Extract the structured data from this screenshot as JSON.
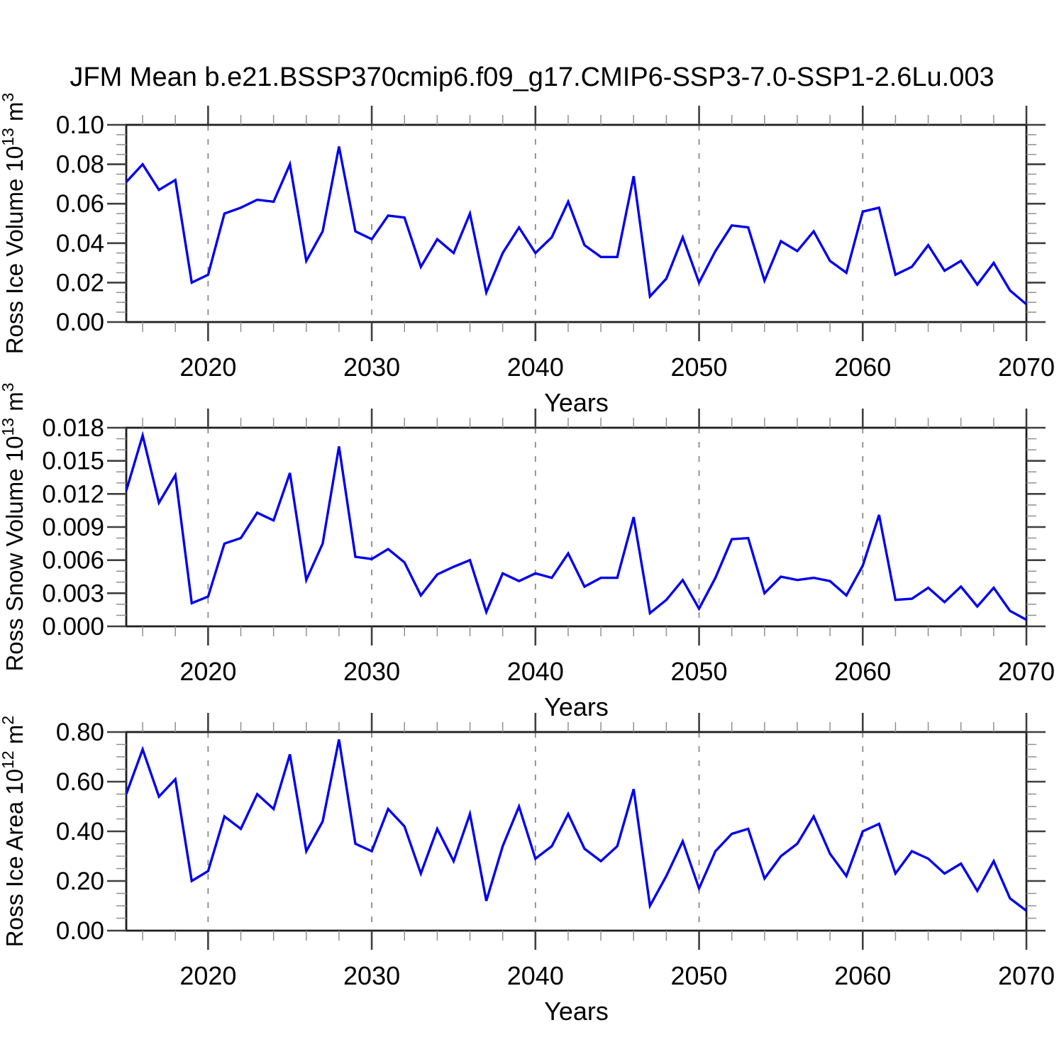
{
  "title": "JFM Mean b.e21.BSSP370cmip6.f09_g17.CMIP6-SSP3-7.0-SSP1-2.6Lu.003",
  "colors": {
    "series_line": "#0000EE",
    "gridline": "#8A8A8A",
    "axis": "#1F1F1F",
    "text": "#000000",
    "background": "#FFFFFF"
  },
  "x_axis": {
    "label": "Years",
    "range": [
      2015,
      2070
    ],
    "major_ticks": [
      2020,
      2030,
      2040,
      2050,
      2060,
      2070
    ],
    "tick_labels": [
      "2020",
      "2030",
      "2040",
      "2050",
      "2060",
      "2070"
    ],
    "minor_step": 2,
    "gridline_years": [
      2020,
      2030,
      2040,
      2050,
      2060
    ]
  },
  "years": [
    2015,
    2016,
    2017,
    2018,
    2019,
    2020,
    2021,
    2022,
    2023,
    2024,
    2025,
    2026,
    2027,
    2028,
    2029,
    2030,
    2031,
    2032,
    2033,
    2034,
    2035,
    2036,
    2037,
    2038,
    2039,
    2040,
    2041,
    2042,
    2043,
    2044,
    2045,
    2046,
    2047,
    2048,
    2049,
    2050,
    2051,
    2052,
    2053,
    2054,
    2055,
    2056,
    2057,
    2058,
    2059,
    2060,
    2061,
    2062,
    2063,
    2064,
    2065,
    2066,
    2067,
    2068,
    2069,
    2070
  ],
  "chart_data": [
    {
      "type": "line",
      "name": "ross-ice-volume",
      "xlabel": "Years",
      "ylabel_text": "Ross Ice Volume 10^13 m^3",
      "ylabel_parts": [
        {
          "text": "Ross Ice Volume 10"
        },
        {
          "text": "13",
          "sup": true
        },
        {
          "text": " m"
        },
        {
          "text": "3",
          "sup": true
        }
      ],
      "ylim": [
        0.0,
        0.1
      ],
      "ytick_values": [
        0.0,
        0.02,
        0.04,
        0.06,
        0.08,
        0.1
      ],
      "ytick_labels": [
        "0.00",
        "0.02",
        "0.04",
        "0.06",
        "0.08",
        "0.10"
      ],
      "y_minor_step": 0.005,
      "line_color": "#0000EE",
      "grid": "dashed vertical gridlines at decades",
      "legend": "none",
      "values": [
        0.071,
        0.08,
        0.067,
        0.072,
        0.02,
        0.024,
        0.055,
        0.058,
        0.062,
        0.061,
        0.08,
        0.031,
        0.046,
        0.089,
        0.046,
        0.042,
        0.054,
        0.053,
        0.028,
        0.042,
        0.035,
        0.055,
        0.015,
        0.035,
        0.048,
        0.035,
        0.043,
        0.061,
        0.039,
        0.033,
        0.033,
        0.074,
        0.013,
        0.022,
        0.043,
        0.02,
        0.036,
        0.049,
        0.048,
        0.021,
        0.041,
        0.036,
        0.046,
        0.031,
        0.025,
        0.056,
        0.058,
        0.024,
        0.028,
        0.039,
        0.026,
        0.031,
        0.019,
        0.03,
        0.016,
        0.009
      ]
    },
    {
      "type": "line",
      "name": "ross-snow-volume",
      "xlabel": "Years",
      "ylabel_text": "Ross Snow Volume 10^13 m^3",
      "ylabel_parts": [
        {
          "text": "Ross Snow Volume 10"
        },
        {
          "text": "13",
          "sup": true
        },
        {
          "text": " m"
        },
        {
          "text": "3",
          "sup": true
        }
      ],
      "ylim": [
        0.0,
        0.018
      ],
      "ytick_values": [
        0.0,
        0.003,
        0.006,
        0.009,
        0.012,
        0.015,
        0.018
      ],
      "ytick_labels": [
        "0.000",
        "0.003",
        "0.006",
        "0.009",
        "0.012",
        "0.015",
        "0.018"
      ],
      "y_minor_step": 0.001,
      "line_color": "#0000EE",
      "grid": "dashed vertical gridlines at decades",
      "legend": "none",
      "values": [
        0.0123,
        0.0173,
        0.0112,
        0.0137,
        0.0021,
        0.0027,
        0.0075,
        0.008,
        0.0103,
        0.0096,
        0.0139,
        0.0042,
        0.0075,
        0.0163,
        0.0063,
        0.0061,
        0.007,
        0.0058,
        0.0028,
        0.0047,
        0.0054,
        0.006,
        0.0013,
        0.0048,
        0.0041,
        0.0048,
        0.0044,
        0.0066,
        0.0036,
        0.0044,
        0.0044,
        0.0099,
        0.0012,
        0.0024,
        0.0042,
        0.0016,
        0.0044,
        0.0079,
        0.008,
        0.003,
        0.0045,
        0.0042,
        0.0044,
        0.0041,
        0.0028,
        0.0055,
        0.0101,
        0.0024,
        0.0025,
        0.0035,
        0.0022,
        0.0036,
        0.0018,
        0.0035,
        0.0014,
        0.0006
      ]
    },
    {
      "type": "line",
      "name": "ross-ice-area",
      "xlabel": "Years",
      "ylabel_text": "Ross Ice Area 10^12 m^2",
      "ylabel_parts": [
        {
          "text": "Ross Ice Area 10"
        },
        {
          "text": "12",
          "sup": true
        },
        {
          "text": " m"
        },
        {
          "text": "2",
          "sup": true
        }
      ],
      "ylim": [
        0.0,
        0.8
      ],
      "ytick_values": [
        0.0,
        0.2,
        0.4,
        0.6,
        0.8
      ],
      "ytick_labels": [
        "0.00",
        "0.20",
        "0.40",
        "0.60",
        "0.80"
      ],
      "y_minor_step": 0.05,
      "line_color": "#0000EE",
      "grid": "dashed vertical gridlines at decades",
      "legend": "none",
      "values": [
        0.55,
        0.73,
        0.54,
        0.61,
        0.2,
        0.24,
        0.46,
        0.41,
        0.55,
        0.49,
        0.71,
        0.32,
        0.44,
        0.77,
        0.35,
        0.32,
        0.49,
        0.42,
        0.23,
        0.41,
        0.28,
        0.47,
        0.12,
        0.34,
        0.5,
        0.29,
        0.34,
        0.47,
        0.33,
        0.28,
        0.34,
        0.57,
        0.1,
        0.22,
        0.36,
        0.17,
        0.32,
        0.39,
        0.41,
        0.21,
        0.3,
        0.35,
        0.46,
        0.31,
        0.22,
        0.4,
        0.43,
        0.23,
        0.32,
        0.29,
        0.23,
        0.27,
        0.16,
        0.28,
        0.13,
        0.08
      ]
    }
  ]
}
